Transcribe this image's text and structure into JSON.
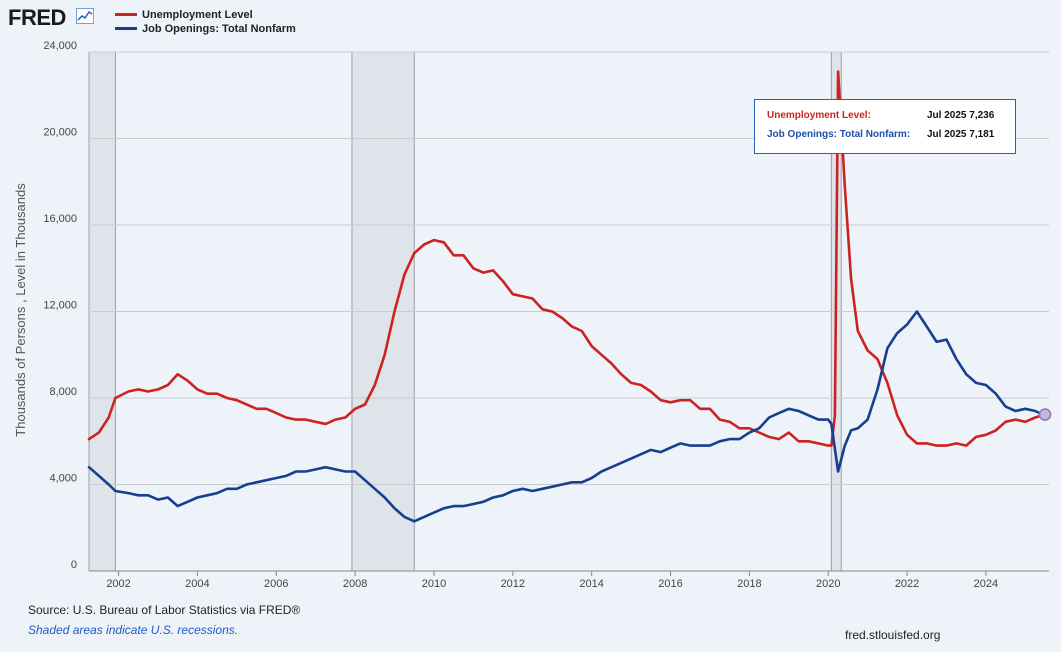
{
  "header": {
    "logo_text": "FRED",
    "legend": [
      {
        "label": "Unemployment Level",
        "color": "#cc2222"
      },
      {
        "label": "Job Openings: Total Nonfarm",
        "color": "#163e91"
      }
    ]
  },
  "tooltip": {
    "rows": [
      {
        "label": "Unemployment Level:",
        "value": "Jul 2025 7,236",
        "color": "#cc2222"
      },
      {
        "label": "Job Openings: Total Nonfarm:",
        "value": "Jul 2025 7,181",
        "color": "#1f4fa8"
      }
    ]
  },
  "footer": {
    "source": "Source: U.S. Bureau of Labor Statistics via FRED®",
    "recession_note": "Shaded areas indicate U.S. recessions.",
    "site": "fred.stlouisfed.org"
  },
  "chart_data": {
    "type": "line",
    "ylabel": "Thousands of Persons , Level in Thousands",
    "xlabel": "",
    "title": "",
    "ylim": [
      0,
      24000
    ],
    "xlim": [
      2001.25,
      2025.6
    ],
    "yticks": [
      0,
      4000,
      8000,
      12000,
      16000,
      20000,
      24000
    ],
    "ytick_labels": [
      "0",
      "4,000",
      "8,000",
      "12,000",
      "16,000",
      "20,000",
      "24,000"
    ],
    "xticks": [
      2002,
      2004,
      2006,
      2008,
      2010,
      2012,
      2014,
      2016,
      2018,
      2020,
      2022,
      2024
    ],
    "xtick_labels": [
      "2002",
      "2004",
      "2006",
      "2008",
      "2010",
      "2012",
      "2014",
      "2016",
      "2018",
      "2020",
      "2022",
      "2024"
    ],
    "grid": "horizontal",
    "recessions": [
      [
        2001.25,
        2001.92
      ],
      [
        2007.92,
        2009.5
      ],
      [
        2020.08,
        2020.33
      ]
    ],
    "series": [
      {
        "name": "Unemployment Level",
        "color": "#cc2222",
        "points": [
          [
            2001.25,
            6100
          ],
          [
            2001.5,
            6400
          ],
          [
            2001.75,
            7100
          ],
          [
            2001.92,
            8000
          ],
          [
            2002.25,
            8300
          ],
          [
            2002.5,
            8400
          ],
          [
            2002.75,
            8300
          ],
          [
            2003.0,
            8400
          ],
          [
            2003.25,
            8600
          ],
          [
            2003.5,
            9100
          ],
          [
            2003.75,
            8800
          ],
          [
            2004.0,
            8400
          ],
          [
            2004.25,
            8200
          ],
          [
            2004.5,
            8200
          ],
          [
            2004.75,
            8000
          ],
          [
            2005.0,
            7900
          ],
          [
            2005.25,
            7700
          ],
          [
            2005.5,
            7500
          ],
          [
            2005.75,
            7500
          ],
          [
            2006.0,
            7300
          ],
          [
            2006.25,
            7100
          ],
          [
            2006.5,
            7000
          ],
          [
            2006.75,
            7000
          ],
          [
            2007.0,
            6900
          ],
          [
            2007.25,
            6800
          ],
          [
            2007.5,
            7000
          ],
          [
            2007.75,
            7100
          ],
          [
            2008.0,
            7500
          ],
          [
            2008.25,
            7700
          ],
          [
            2008.5,
            8600
          ],
          [
            2008.75,
            10000
          ],
          [
            2009.0,
            12000
          ],
          [
            2009.25,
            13700
          ],
          [
            2009.5,
            14700
          ],
          [
            2009.75,
            15100
          ],
          [
            2010.0,
            15300
          ],
          [
            2010.25,
            15200
          ],
          [
            2010.5,
            14600
          ],
          [
            2010.75,
            14600
          ],
          [
            2011.0,
            14000
          ],
          [
            2011.25,
            13800
          ],
          [
            2011.5,
            13900
          ],
          [
            2011.75,
            13400
          ],
          [
            2012.0,
            12800
          ],
          [
            2012.25,
            12700
          ],
          [
            2012.5,
            12600
          ],
          [
            2012.75,
            12100
          ],
          [
            2013.0,
            12000
          ],
          [
            2013.25,
            11700
          ],
          [
            2013.5,
            11300
          ],
          [
            2013.75,
            11100
          ],
          [
            2014.0,
            10400
          ],
          [
            2014.25,
            10000
          ],
          [
            2014.5,
            9600
          ],
          [
            2014.75,
            9100
          ],
          [
            2015.0,
            8700
          ],
          [
            2015.25,
            8600
          ],
          [
            2015.5,
            8300
          ],
          [
            2015.75,
            7900
          ],
          [
            2016.0,
            7800
          ],
          [
            2016.25,
            7900
          ],
          [
            2016.5,
            7900
          ],
          [
            2016.75,
            7500
          ],
          [
            2017.0,
            7500
          ],
          [
            2017.25,
            7000
          ],
          [
            2017.5,
            6900
          ],
          [
            2017.75,
            6600
          ],
          [
            2018.0,
            6600
          ],
          [
            2018.25,
            6400
          ],
          [
            2018.5,
            6200
          ],
          [
            2018.75,
            6100
          ],
          [
            2019.0,
            6400
          ],
          [
            2019.25,
            6000
          ],
          [
            2019.5,
            6000
          ],
          [
            2019.75,
            5900
          ],
          [
            2020.0,
            5800
          ],
          [
            2020.08,
            5800
          ],
          [
            2020.17,
            7200
          ],
          [
            2020.25,
            23100
          ],
          [
            2020.42,
            17800
          ],
          [
            2020.58,
            13500
          ],
          [
            2020.75,
            11100
          ],
          [
            2021.0,
            10200
          ],
          [
            2021.25,
            9800
          ],
          [
            2021.5,
            8700
          ],
          [
            2021.75,
            7200
          ],
          [
            2022.0,
            6300
          ],
          [
            2022.25,
            5900
          ],
          [
            2022.5,
            5900
          ],
          [
            2022.75,
            5800
          ],
          [
            2023.0,
            5800
          ],
          [
            2023.25,
            5900
          ],
          [
            2023.5,
            5800
          ],
          [
            2023.75,
            6200
          ],
          [
            2024.0,
            6300
          ],
          [
            2024.25,
            6500
          ],
          [
            2024.5,
            6900
          ],
          [
            2024.75,
            7000
          ],
          [
            2025.0,
            6900
          ],
          [
            2025.25,
            7100
          ],
          [
            2025.5,
            7236
          ]
        ]
      },
      {
        "name": "Job Openings: Total Nonfarm",
        "color": "#163e91",
        "points": [
          [
            2001.25,
            4800
          ],
          [
            2001.5,
            4400
          ],
          [
            2001.75,
            4000
          ],
          [
            2001.92,
            3700
          ],
          [
            2002.25,
            3600
          ],
          [
            2002.5,
            3500
          ],
          [
            2002.75,
            3500
          ],
          [
            2003.0,
            3300
          ],
          [
            2003.25,
            3400
          ],
          [
            2003.5,
            3000
          ],
          [
            2003.75,
            3200
          ],
          [
            2004.0,
            3400
          ],
          [
            2004.25,
            3500
          ],
          [
            2004.5,
            3600
          ],
          [
            2004.75,
            3800
          ],
          [
            2005.0,
            3800
          ],
          [
            2005.25,
            4000
          ],
          [
            2005.5,
            4100
          ],
          [
            2005.75,
            4200
          ],
          [
            2006.0,
            4300
          ],
          [
            2006.25,
            4400
          ],
          [
            2006.5,
            4600
          ],
          [
            2006.75,
            4600
          ],
          [
            2007.0,
            4700
          ],
          [
            2007.25,
            4800
          ],
          [
            2007.5,
            4700
          ],
          [
            2007.75,
            4600
          ],
          [
            2008.0,
            4600
          ],
          [
            2008.25,
            4200
          ],
          [
            2008.5,
            3800
          ],
          [
            2008.75,
            3400
          ],
          [
            2009.0,
            2900
          ],
          [
            2009.25,
            2500
          ],
          [
            2009.5,
            2300
          ],
          [
            2009.75,
            2500
          ],
          [
            2010.0,
            2700
          ],
          [
            2010.25,
            2900
          ],
          [
            2010.5,
            3000
          ],
          [
            2010.75,
            3000
          ],
          [
            2011.0,
            3100
          ],
          [
            2011.25,
            3200
          ],
          [
            2011.5,
            3400
          ],
          [
            2011.75,
            3500
          ],
          [
            2012.0,
            3700
          ],
          [
            2012.25,
            3800
          ],
          [
            2012.5,
            3700
          ],
          [
            2012.75,
            3800
          ],
          [
            2013.0,
            3900
          ],
          [
            2013.25,
            4000
          ],
          [
            2013.5,
            4100
          ],
          [
            2013.75,
            4100
          ],
          [
            2014.0,
            4300
          ],
          [
            2014.25,
            4600
          ],
          [
            2014.5,
            4800
          ],
          [
            2014.75,
            5000
          ],
          [
            2015.0,
            5200
          ],
          [
            2015.25,
            5400
          ],
          [
            2015.5,
            5600
          ],
          [
            2015.75,
            5500
          ],
          [
            2016.0,
            5700
          ],
          [
            2016.25,
            5900
          ],
          [
            2016.5,
            5800
          ],
          [
            2016.75,
            5800
          ],
          [
            2017.0,
            5800
          ],
          [
            2017.25,
            6000
          ],
          [
            2017.5,
            6100
          ],
          [
            2017.75,
            6100
          ],
          [
            2018.0,
            6400
          ],
          [
            2018.25,
            6600
          ],
          [
            2018.5,
            7100
          ],
          [
            2018.75,
            7300
          ],
          [
            2019.0,
            7500
          ],
          [
            2019.25,
            7400
          ],
          [
            2019.5,
            7200
          ],
          [
            2019.75,
            7000
          ],
          [
            2020.0,
            7000
          ],
          [
            2020.08,
            6800
          ],
          [
            2020.25,
            4600
          ],
          [
            2020.42,
            5800
          ],
          [
            2020.58,
            6500
          ],
          [
            2020.75,
            6600
          ],
          [
            2021.0,
            7000
          ],
          [
            2021.25,
            8400
          ],
          [
            2021.5,
            10300
          ],
          [
            2021.75,
            11000
          ],
          [
            2022.0,
            11400
          ],
          [
            2022.25,
            12000
          ],
          [
            2022.5,
            11300
          ],
          [
            2022.75,
            10600
          ],
          [
            2023.0,
            10700
          ],
          [
            2023.25,
            9800
          ],
          [
            2023.5,
            9100
          ],
          [
            2023.75,
            8700
          ],
          [
            2024.0,
            8600
          ],
          [
            2024.25,
            8200
          ],
          [
            2024.5,
            7600
          ],
          [
            2024.75,
            7400
          ],
          [
            2025.0,
            7500
          ],
          [
            2025.25,
            7400
          ],
          [
            2025.5,
            7181
          ]
        ]
      }
    ]
  }
}
